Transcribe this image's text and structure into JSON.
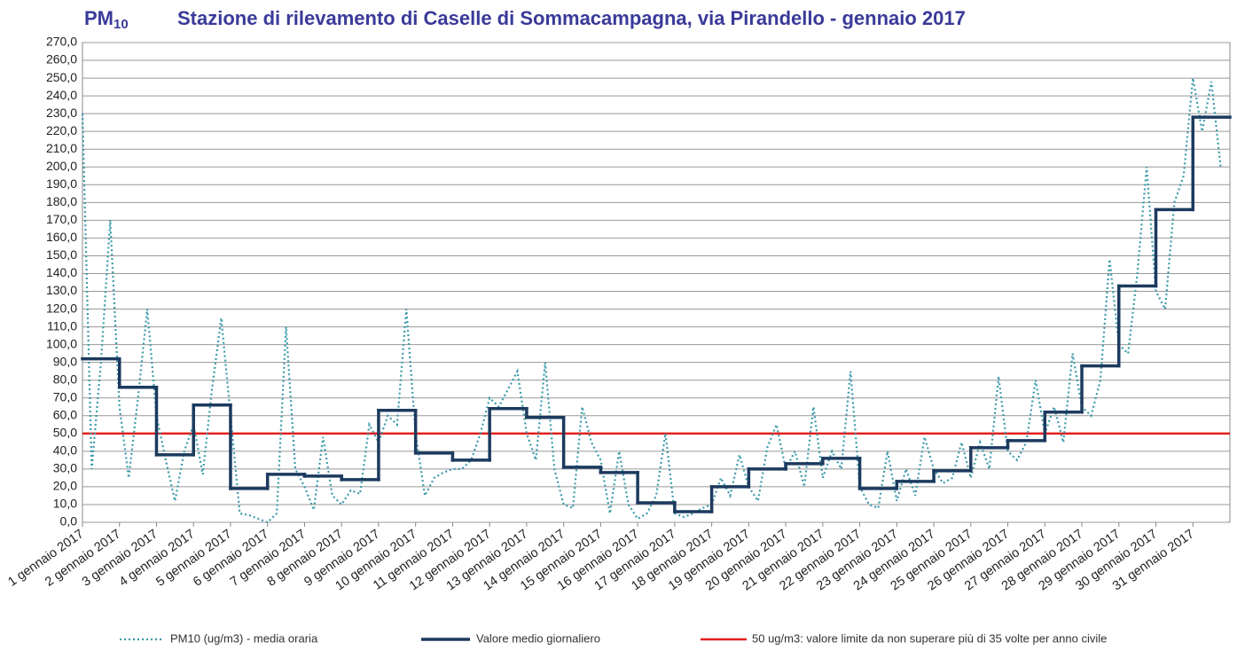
{
  "chart_data": {
    "type": "line",
    "title_pollutant": "PM",
    "title_subscript": "10",
    "title": "Stazione di rilevamento di Caselle di Sommacampagna, via Pirandello - gennaio 2017",
    "categories": [
      "1 gennaio 2017",
      "2 gennaio 2017",
      "3 gennaio 2017",
      "4 gennaio 2017",
      "5 gennaio 2017",
      "6 gennaio 2017",
      "7 gennaio 2017",
      "8 gennaio 2017",
      "9 gennaio 2017",
      "10 gennaio 2017",
      "11 gennaio 2017",
      "12 gennaio 2017",
      "13 gennaio 2017",
      "14 gennaio 2017",
      "15 gennaio 2017",
      "16 gennaio 2017",
      "17 gennaio 2017",
      "18 gennaio 2017",
      "19 gennaio 2017",
      "20 gennaio 2017",
      "21 gennaio 2017",
      "22 gennaio 2017",
      "23 gennaio 2017",
      "24 gennaio 2017",
      "25 gennaio 2017",
      "26 gennaio 2017",
      "27 gennaio 2017",
      "28 gennaio 2017",
      "29 gennaio 2017",
      "30 gennaio 2017",
      "31 gennaio 2017"
    ],
    "xlim": [
      0,
      31
    ],
    "ylim": [
      0,
      270
    ],
    "yticks": [
      {
        "value": 0,
        "label": "0,0"
      },
      {
        "value": 10,
        "label": "10,0"
      },
      {
        "value": 20,
        "label": "20,0"
      },
      {
        "value": 30,
        "label": "30,0"
      },
      {
        "value": 40,
        "label": "40,0"
      },
      {
        "value": 50,
        "label": "50,0"
      },
      {
        "value": 60,
        "label": "60,0"
      },
      {
        "value": 70,
        "label": "70,0"
      },
      {
        "value": 80,
        "label": "80,0"
      },
      {
        "value": 90,
        "label": "90,0"
      },
      {
        "value": 100,
        "label": "100,0"
      },
      {
        "value": 110,
        "label": "110,0"
      },
      {
        "value": 120,
        "label": "120,0"
      },
      {
        "value": 130,
        "label": "130,0"
      },
      {
        "value": 140,
        "label": "140,0"
      },
      {
        "value": 150,
        "label": "150,0"
      },
      {
        "value": 160,
        "label": "160,0"
      },
      {
        "value": 170,
        "label": "170,0"
      },
      {
        "value": 180,
        "label": "180,0"
      },
      {
        "value": 190,
        "label": "190,0"
      },
      {
        "value": 200,
        "label": "200,0"
      },
      {
        "value": 210,
        "label": "210,0"
      },
      {
        "value": 220,
        "label": "220,0"
      },
      {
        "value": 230,
        "label": "230,0"
      },
      {
        "value": 240,
        "label": "240,0"
      },
      {
        "value": 250,
        "label": "250,0"
      },
      {
        "value": 260,
        "label": "260,0"
      },
      {
        "value": 270,
        "label": "270,0"
      }
    ],
    "grid": true,
    "hourly": {
      "name": "PM10 (ug/m3)  - media oraria",
      "color": "#3a9aab",
      "x": [
        0,
        0.25,
        0.5,
        0.75,
        1,
        1.25,
        1.5,
        1.75,
        2,
        2.25,
        2.5,
        2.75,
        3,
        3.25,
        3.5,
        3.75,
        4,
        4.25,
        4.5,
        4.75,
        5,
        5.25,
        5.5,
        5.75,
        6,
        6.25,
        6.5,
        6.75,
        7,
        7.25,
        7.5,
        7.75,
        8,
        8.25,
        8.5,
        8.75,
        9,
        9.25,
        9.5,
        9.75,
        10,
        10.25,
        10.5,
        10.75,
        11,
        11.25,
        11.5,
        11.75,
        12,
        12.25,
        12.5,
        12.75,
        13,
        13.25,
        13.5,
        13.75,
        14,
        14.25,
        14.5,
        14.75,
        15,
        15.25,
        15.5,
        15.75,
        16,
        16.25,
        16.5,
        16.75,
        17,
        17.25,
        17.5,
        17.75,
        18,
        18.25,
        18.5,
        18.75,
        19,
        19.25,
        19.5,
        19.75,
        20,
        20.25,
        20.5,
        20.75,
        21,
        21.25,
        21.5,
        21.75,
        22,
        22.25,
        22.5,
        22.75,
        23,
        23.25,
        23.5,
        23.75,
        24,
        24.25,
        24.5,
        24.75,
        25,
        25.25,
        25.5,
        25.75,
        26,
        26.25,
        26.5,
        26.75,
        27,
        27.25,
        27.5,
        27.75,
        28,
        28.25,
        28.5,
        28.75,
        29,
        29.25,
        29.5,
        29.75,
        30,
        30.25,
        30.5,
        30.75
      ],
      "values": [
        230,
        30,
        90,
        170,
        65,
        25,
        70,
        120,
        60,
        35,
        12,
        40,
        55,
        27,
        75,
        115,
        60,
        5,
        4,
        2,
        0,
        5,
        110,
        30,
        20,
        7,
        48,
        15,
        10,
        18,
        16,
        55,
        45,
        60,
        55,
        120,
        50,
        15,
        25,
        28,
        30,
        30,
        35,
        50,
        70,
        65,
        75,
        85,
        50,
        35,
        90,
        30,
        10,
        8,
        65,
        45,
        35,
        5,
        40,
        10,
        2,
        5,
        15,
        50,
        5,
        3,
        5,
        8,
        10,
        25,
        15,
        38,
        20,
        12,
        42,
        55,
        30,
        40,
        20,
        65,
        25,
        40,
        30,
        85,
        20,
        10,
        8,
        40,
        12,
        30,
        15,
        48,
        30,
        22,
        25,
        45,
        25,
        45,
        30,
        82,
        40,
        35,
        45,
        80,
        50,
        65,
        45,
        95,
        65,
        60,
        80,
        148,
        100,
        95,
        140,
        200,
        130,
        120,
        180,
        195,
        250,
        220,
        248,
        200
      ]
    },
    "daily": {
      "name": "Valore medio giornaliero",
      "color": "#1c3a5e",
      "values": [
        92,
        76,
        38,
        66,
        19,
        27,
        26,
        24,
        63,
        39,
        35,
        64,
        59,
        31,
        28,
        11,
        6,
        20,
        30,
        33,
        36,
        19,
        23,
        29,
        42,
        46,
        62,
        88,
        133,
        176,
        228
      ]
    },
    "limit": {
      "name": "50 ug/m3: valore limite da non superare più di 35 volte per anno civile",
      "color": "#e31e1e",
      "value": 50
    }
  }
}
